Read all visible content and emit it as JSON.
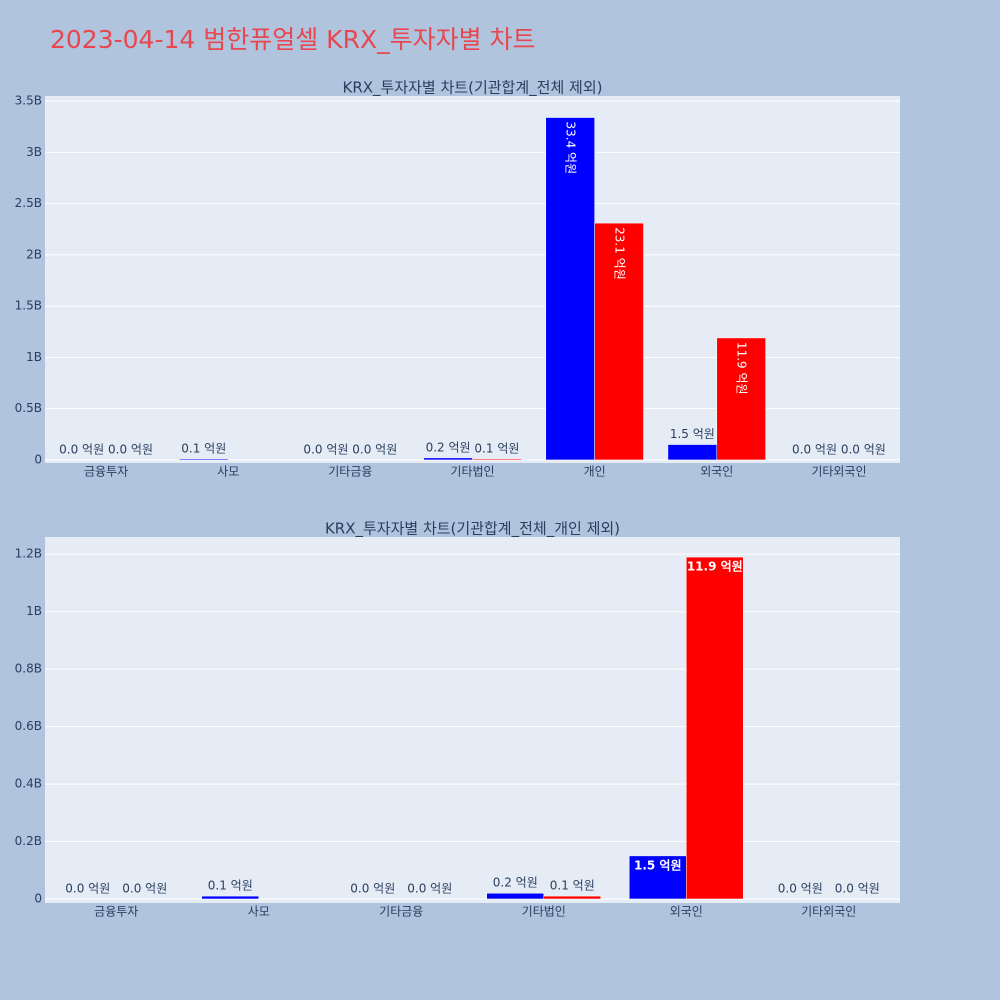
{
  "title": "2023-04-14 범한퓨얼셀 KRX_투자자별 차트",
  "chart_data": [
    {
      "type": "bar",
      "title": "KRX_투자자별 차트(기관합계_전체 제외)",
      "categories": [
        "금융투자",
        "사모",
        "기타금융",
        "기타법인",
        "개인",
        "외국인",
        "기타외국인"
      ],
      "series": [
        {
          "color": "#0000ff",
          "values": [
            0,
            10000000,
            0,
            20000000,
            3340000000,
            150000000,
            0
          ],
          "value_labels": [
            "0.0 억원",
            "0.1 억원",
            "0.0 억원",
            "0.2 억원",
            "33.4 억원",
            "1.5 억원",
            "0.0 억원"
          ]
        },
        {
          "color": "#ff0000",
          "values": [
            0,
            null,
            0,
            10000000,
            2310000000,
            1190000000,
            0
          ],
          "value_labels": [
            "0.0 억원",
            null,
            "0.0 억원",
            "0.1 억원",
            "23.1 억원",
            "11.9 억원",
            "0.0 억원"
          ]
        }
      ],
      "ylim": [
        -30000000,
        3550000000
      ],
      "yticks": [
        0,
        {
          "value": 500000000,
          "label": "0.5B"
        },
        {
          "value": 1000000000,
          "label": "1B"
        },
        {
          "value": 1500000000,
          "label": "1.5B"
        },
        {
          "value": 2000000000,
          "label": "2B"
        },
        {
          "value": 2500000000,
          "label": "2.5B"
        },
        {
          "value": 3000000000,
          "label": "3B"
        },
        {
          "value": 3500000000,
          "label": "3.5B"
        }
      ],
      "grid": true
    },
    {
      "type": "bar",
      "title": "KRX_투자자별 차트(기관합계_전체_개인 제외)",
      "categories": [
        "금융투자",
        "사모",
        "기타금융",
        "기타법인",
        "외국인",
        "기타외국인"
      ],
      "series": [
        {
          "color": "#0000ff",
          "values": [
            0,
            10000000,
            0,
            20000000,
            150000000,
            0
          ],
          "value_labels": [
            "0.0 억원",
            "0.1 억원",
            "0.0 억원",
            "0.2 억원",
            "1.5 억원",
            "0.0 억원"
          ]
        },
        {
          "color": "#ff0000",
          "values": [
            0,
            null,
            0,
            10000000,
            1190000000,
            0
          ],
          "value_labels": [
            "0.0 억원",
            null,
            "0.0 억원",
            "0.1 억원",
            "11.9 억원",
            "0.0 억원"
          ]
        }
      ],
      "ylim": [
        -14000000,
        1260000000
      ],
      "yticks": [
        0,
        {
          "value": 200000000,
          "label": "0.2B"
        },
        {
          "value": 400000000,
          "label": "0.4B"
        },
        {
          "value": 600000000,
          "label": "0.6B"
        },
        {
          "value": 800000000,
          "label": "0.8B"
        },
        {
          "value": 1000000000,
          "label": "1B"
        },
        {
          "value": 1200000000,
          "label": "1.2B"
        }
      ],
      "grid": true
    }
  ]
}
